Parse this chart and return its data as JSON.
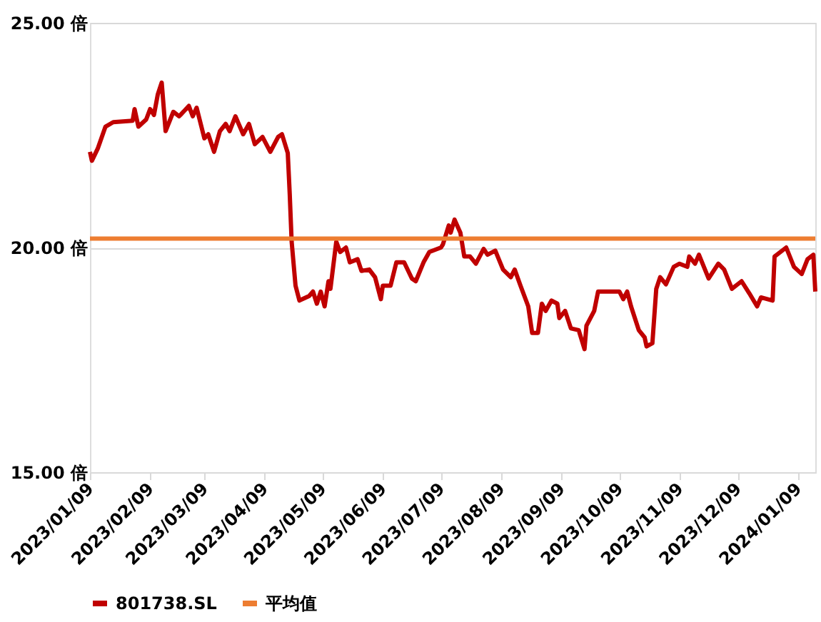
{
  "chart_data": {
    "type": "line",
    "legend": "bottom",
    "grid": "y",
    "line_style": "solid",
    "marker": "none",
    "ylim": [
      15,
      25
    ],
    "yticks": [
      {
        "value": 15,
        "label": "15.00 倍"
      },
      {
        "value": 20,
        "label": "20.00 倍"
      },
      {
        "value": 25,
        "label": "25.00 倍"
      }
    ],
    "xlim": [
      "2023-01-09",
      "2024-01-18"
    ],
    "xticks": [
      {
        "value": "2023-01-09",
        "label": "2023/01/09"
      },
      {
        "value": "2023-02-09",
        "label": "2023/02/09"
      },
      {
        "value": "2023-03-09",
        "label": "2023/03/09"
      },
      {
        "value": "2023-04-09",
        "label": "2023/04/09"
      },
      {
        "value": "2023-05-09",
        "label": "2023/05/09"
      },
      {
        "value": "2023-06-09",
        "label": "2023/06/09"
      },
      {
        "value": "2023-07-09",
        "label": "2023/07/09"
      },
      {
        "value": "2023-08-09",
        "label": "2023/08/09"
      },
      {
        "value": "2023-09-09",
        "label": "2023/09/09"
      },
      {
        "value": "2023-10-09",
        "label": "2023/10/09"
      },
      {
        "value": "2023-11-09",
        "label": "2023/11/09"
      },
      {
        "value": "2023-12-09",
        "label": "2023/12/09"
      },
      {
        "value": "2024-01-09",
        "label": "2024/01/09"
      }
    ],
    "ref_lines": [
      {
        "axis": "y",
        "value": 20.2,
        "label": "平均值",
        "color": "#ed7d31",
        "line_style": "solid"
      }
    ],
    "series": [
      {
        "name": "801738.SL",
        "color": "#c00000",
        "x": [
          "2023-01-09",
          "2023-01-10",
          "2023-01-13",
          "2023-01-17",
          "2023-01-21",
          "2023-01-31",
          "2023-02-01",
          "2023-02-03",
          "2023-02-07",
          "2023-02-09",
          "2023-02-11",
          "2023-02-13",
          "2023-02-15",
          "2023-02-17",
          "2023-02-21",
          "2023-02-24",
          "2023-03-01",
          "2023-03-03",
          "2023-03-05",
          "2023-03-09",
          "2023-03-11",
          "2023-03-14",
          "2023-03-17",
          "2023-03-20",
          "2023-03-22",
          "2023-03-25",
          "2023-03-29",
          "2023-04-01",
          "2023-04-04",
          "2023-04-08",
          "2023-04-12",
          "2023-04-16",
          "2023-04-18",
          "2023-04-21",
          "2023-04-22",
          "2023-04-23",
          "2023-04-25",
          "2023-04-27",
          "2023-05-02",
          "2023-05-04",
          "2023-05-06",
          "2023-05-08",
          "2023-05-10",
          "2023-05-12",
          "2023-05-13",
          "2023-05-16",
          "2023-05-18",
          "2023-05-21",
          "2023-05-23",
          "2023-05-27",
          "2023-05-29",
          "2023-06-02",
          "2023-06-05",
          "2023-06-08",
          "2023-06-09",
          "2023-06-13",
          "2023-06-16",
          "2023-06-20",
          "2023-06-24",
          "2023-06-26",
          "2023-06-30",
          "2023-07-03",
          "2023-07-09",
          "2023-07-10",
          "2023-07-13",
          "2023-07-14",
          "2023-07-16",
          "2023-07-19",
          "2023-07-21",
          "2023-07-24",
          "2023-07-27",
          "2023-07-31",
          "2023-08-02",
          "2023-08-06",
          "2023-08-10",
          "2023-08-14",
          "2023-08-16",
          "2023-08-19",
          "2023-08-23",
          "2023-08-25",
          "2023-08-28",
          "2023-08-30",
          "2023-09-01",
          "2023-09-04",
          "2023-09-07",
          "2023-09-08",
          "2023-09-11",
          "2023-09-14",
          "2023-09-18",
          "2023-09-21",
          "2023-09-22",
          "2023-09-26",
          "2023-09-28",
          "2023-10-09",
          "2023-10-11",
          "2023-10-13",
          "2023-10-15",
          "2023-10-19",
          "2023-10-22",
          "2023-10-23",
          "2023-10-26",
          "2023-10-28",
          "2023-10-30",
          "2023-11-02",
          "2023-11-06",
          "2023-11-09",
          "2023-11-13",
          "2023-11-14",
          "2023-11-17",
          "2023-11-19",
          "2023-11-24",
          "2023-11-29",
          "2023-12-02",
          "2023-12-06",
          "2023-12-11",
          "2023-12-15",
          "2023-12-19",
          "2023-12-21",
          "2023-12-27",
          "2023-12-28",
          "2024-01-03",
          "2024-01-07",
          "2024-01-11",
          "2024-01-14",
          "2024-01-17",
          "2024-01-18"
        ],
        "values": [
          22.13,
          21.93,
          22.2,
          22.69,
          22.79,
          22.82,
          23.08,
          22.69,
          22.85,
          23.08,
          22.95,
          23.41,
          23.67,
          22.59,
          23.02,
          22.92,
          23.15,
          22.92,
          23.11,
          22.43,
          22.52,
          22.13,
          22.59,
          22.75,
          22.59,
          22.92,
          22.52,
          22.75,
          22.3,
          22.46,
          22.13,
          22.46,
          22.52,
          22.1,
          21.2,
          20.13,
          19.15,
          18.82,
          18.92,
          19.02,
          18.75,
          19.02,
          18.69,
          19.25,
          19.08,
          20.13,
          19.9,
          20.0,
          19.67,
          19.74,
          19.48,
          19.51,
          19.34,
          18.85,
          19.15,
          19.15,
          19.67,
          19.67,
          19.31,
          19.25,
          19.67,
          19.9,
          20.0,
          20.07,
          20.49,
          20.33,
          20.62,
          20.33,
          19.8,
          19.8,
          19.64,
          19.97,
          19.84,
          19.93,
          19.51,
          19.34,
          19.51,
          19.15,
          18.69,
          18.1,
          18.1,
          18.75,
          18.59,
          18.82,
          18.75,
          18.43,
          18.59,
          18.2,
          18.16,
          17.74,
          18.26,
          18.59,
          19.02,
          19.02,
          18.85,
          19.02,
          18.69,
          18.16,
          18.0,
          17.8,
          17.87,
          19.08,
          19.34,
          19.18,
          19.57,
          19.64,
          19.57,
          19.8,
          19.64,
          19.84,
          19.31,
          19.64,
          19.51,
          19.08,
          19.25,
          18.98,
          18.69,
          18.89,
          18.82,
          19.8,
          20.0,
          19.57,
          19.41,
          19.74,
          19.84,
          19.02
        ]
      }
    ]
  }
}
